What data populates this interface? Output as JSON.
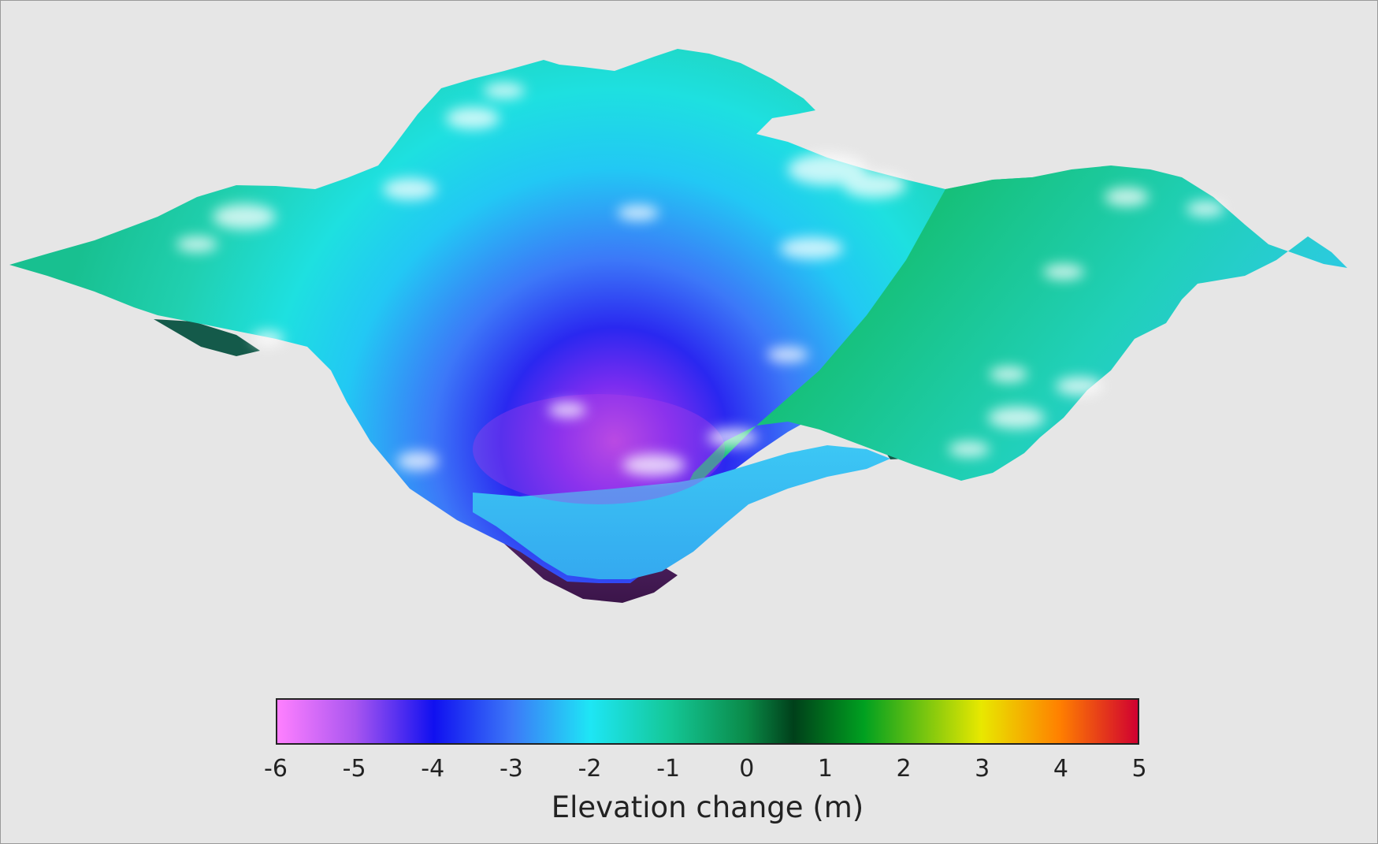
{
  "chart_data": {
    "type": "heatmap",
    "title": "",
    "colorbar": {
      "label": "Elevation change (m)",
      "min": -6,
      "max": 5,
      "ticks": [
        -6,
        -5,
        -4,
        -3,
        -2,
        -1,
        0,
        1,
        2,
        3,
        4,
        5
      ],
      "colormap": [
        {
          "value": -6,
          "color": "#ff80ff"
        },
        {
          "value": -5,
          "color": "#a855f0"
        },
        {
          "value": -4,
          "color": "#1010f0"
        },
        {
          "value": -3,
          "color": "#3c78f8"
        },
        {
          "value": -2,
          "color": "#1ee6f5"
        },
        {
          "value": -1,
          "color": "#14c898"
        },
        {
          "value": 0,
          "color": "#0a8a48"
        },
        {
          "value": 0.6,
          "color": "#00401a"
        },
        {
          "value": 1.5,
          "color": "#00a020"
        },
        {
          "value": 3,
          "color": "#e8e800"
        },
        {
          "value": 4,
          "color": "#ff8000"
        },
        {
          "value": 5,
          "color": "#d00030"
        }
      ]
    },
    "surface": {
      "description_type": "3d-surface",
      "min_value_approx": -5.5,
      "rim_value_approx": -1.5
    }
  }
}
